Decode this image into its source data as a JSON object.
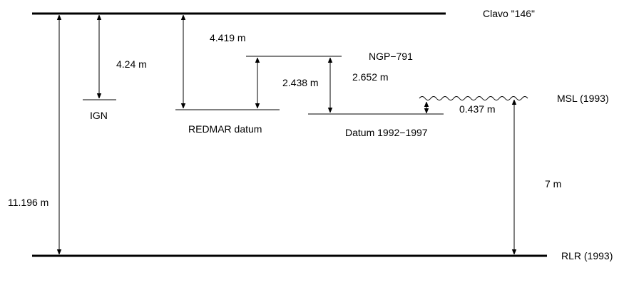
{
  "levels": {
    "clavo": "Clavo \"146\"",
    "ngp": "NGP−791",
    "msl": "MSL (1993)",
    "ign": "IGN",
    "redmar": "REDMAR datum",
    "datum": "Datum 1992−1997",
    "rlr": "RLR (1993)"
  },
  "distances": {
    "ign_from_clavo": "4.24 m",
    "redmar_from_clavo": "4.419 m",
    "redmar_from_ngp": "2.438 m",
    "datum_from_ngp": "2.652 m",
    "msl_above_datum": "0.437 m",
    "msl_above_rlr": "7 m",
    "clavo_above_rlr": "11.196 m"
  },
  "colors": {
    "ink": "#000000"
  }
}
